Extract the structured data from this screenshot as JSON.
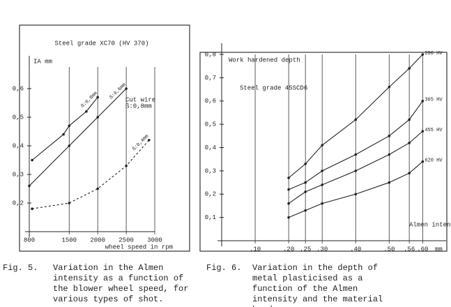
{
  "chart_data": [
    {
      "type": "line",
      "title": "Steel grade XC70 (HV 370)",
      "y_label": "IA mm",
      "x_label": "wheel speed in rpm",
      "fig_label": "Fig. 5.",
      "caption": "Variation in the Almen intensity as a function of the blower wheel speed, for various types of shot.",
      "annotations": [
        "Cut wire",
        "ß:0,8mm"
      ],
      "xlim": [
        800,
        3000
      ],
      "xticks": [
        800,
        1500,
        2000,
        2500,
        3000
      ],
      "ylim": [
        0.1,
        0.7
      ],
      "yticks": [
        {
          "value": 0.2,
          "label": "0,2"
        },
        {
          "value": 0.3,
          "label": "0,3"
        },
        {
          "value": 0.4,
          "label": "0,4"
        },
        {
          "value": 0.5,
          "label": "0,5"
        },
        {
          "value": 0.6,
          "label": "0,6"
        }
      ],
      "grid": true,
      "series": [
        {
          "name": "ß:0,8mm",
          "color": "#222222",
          "dashed": false,
          "x": [
            850,
            1400,
            1500,
            1800,
            2000
          ],
          "values": [
            0.35,
            0.44,
            0.47,
            0.52,
            0.57
          ]
        },
        {
          "name": "ß:0,6mm",
          "color": "#222222",
          "dashed": false,
          "x": [
            800,
            1500,
            2000,
            2500
          ],
          "values": [
            0.26,
            0.4,
            0.5,
            0.6
          ]
        },
        {
          "name": "ß:0,4mm",
          "color": "#222222",
          "dashed": true,
          "x": [
            850,
            1500,
            2000,
            2500,
            2900
          ],
          "values": [
            0.18,
            0.2,
            0.25,
            0.33,
            0.42
          ]
        }
      ]
    },
    {
      "type": "line",
      "title": "Work hardened depth",
      "subtitle": "Steel grade 45SCD6",
      "x_label": "Almen intensity",
      "x_unit": "mm",
      "fig_label": "Fig. 6.",
      "caption": "Variation in the depth of metal plasticised as a function of the Almen intensity and the material hardness.",
      "xlim": [
        0,
        0.67
      ],
      "xticks": [
        {
          "value": 0.1,
          "label": ".10"
        },
        {
          "value": 0.2,
          "label": ".20"
        },
        {
          "value": 0.25,
          "label": ".25"
        },
        {
          "value": 0.3,
          "label": ".30"
        },
        {
          "value": 0.4,
          "label": ".40"
        },
        {
          "value": 0.5,
          "label": ".50"
        },
        {
          "value": 0.56,
          "label": ".56"
        },
        {
          "value": 0.6,
          "label": ".60"
        }
      ],
      "ylim": [
        0,
        0.83
      ],
      "yticks": [
        {
          "value": 0.1,
          "label": "0,1"
        },
        {
          "value": 0.2,
          "label": "0,2"
        },
        {
          "value": 0.3,
          "label": "0,3"
        },
        {
          "value": 0.4,
          "label": "0,4"
        },
        {
          "value": 0.5,
          "label": "0,5"
        },
        {
          "value": 0.6,
          "label": "0,6"
        },
        {
          "value": 0.7,
          "label": "0,7"
        },
        {
          "value": 0.8,
          "label": "0,8"
        }
      ],
      "grid": true,
      "series": [
        {
          "name": "280 HV",
          "color": "#222222",
          "dashed": false,
          "x": [
            0.2,
            0.25,
            0.3,
            0.4,
            0.5,
            0.56,
            0.6
          ],
          "values": [
            0.27,
            0.33,
            0.41,
            0.52,
            0.66,
            0.74,
            0.8
          ]
        },
        {
          "name": "365 HV",
          "color": "#222222",
          "dashed": false,
          "x": [
            0.2,
            0.25,
            0.3,
            0.4,
            0.5,
            0.56,
            0.6
          ],
          "values": [
            0.22,
            0.25,
            0.3,
            0.37,
            0.45,
            0.52,
            0.6
          ]
        },
        {
          "name": "455 HV",
          "color": "#222222",
          "dashed": false,
          "x": [
            0.2,
            0.25,
            0.3,
            0.4,
            0.5,
            0.56,
            0.6
          ],
          "values": [
            0.16,
            0.21,
            0.24,
            0.3,
            0.37,
            0.42,
            0.47
          ]
        },
        {
          "name": "620 HV",
          "color": "#222222",
          "dashed": false,
          "x": [
            0.2,
            0.25,
            0.3,
            0.4,
            0.5,
            0.56,
            0.6
          ],
          "values": [
            0.1,
            0.13,
            0.16,
            0.2,
            0.25,
            0.29,
            0.34
          ]
        }
      ]
    }
  ]
}
